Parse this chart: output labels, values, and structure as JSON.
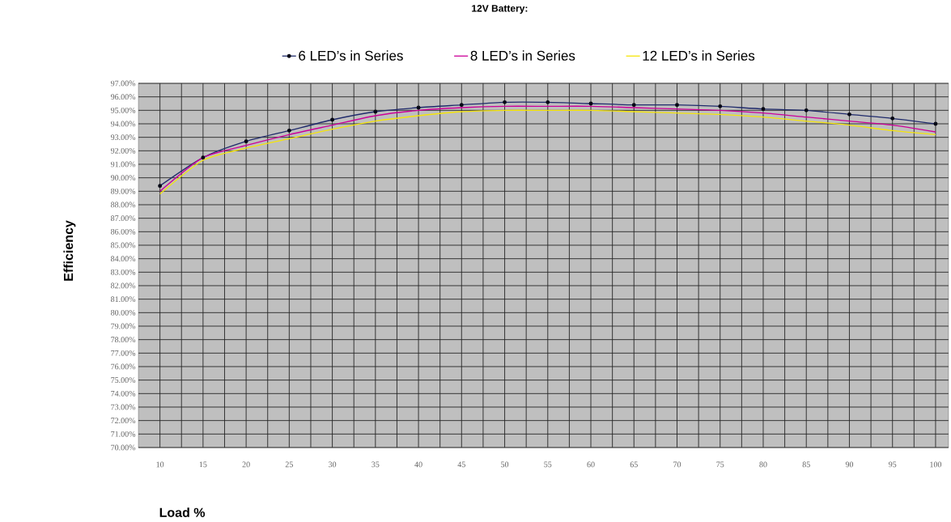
{
  "chart_data": {
    "type": "line",
    "title": "12V Battery:",
    "xlabel": "Load %",
    "ylabel": "Efficiency",
    "x": [
      10,
      15,
      20,
      25,
      30,
      35,
      40,
      45,
      50,
      55,
      60,
      65,
      70,
      75,
      80,
      85,
      90,
      95,
      100
    ],
    "xlim": [
      7.5,
      101.5
    ],
    "xticks": [
      10,
      15,
      20,
      25,
      30,
      35,
      40,
      45,
      50,
      55,
      60,
      65,
      70,
      75,
      80,
      85,
      90,
      95,
      100
    ],
    "ylim": [
      70,
      97
    ],
    "yticks": [
      {
        "value": 70,
        "label": "70.00%"
      },
      {
        "value": 71,
        "label": "71.00%"
      },
      {
        "value": 72,
        "label": "72.00%"
      },
      {
        "value": 73,
        "label": "73.00%"
      },
      {
        "value": 74,
        "label": "74.00%"
      },
      {
        "value": 75,
        "label": "75.00%"
      },
      {
        "value": 76,
        "label": "76.00%"
      },
      {
        "value": 77,
        "label": "77.00%"
      },
      {
        "value": 78,
        "label": "78.00%"
      },
      {
        "value": 79,
        "label": "79.00%"
      },
      {
        "value": 80,
        "label": "80.00%"
      },
      {
        "value": 81,
        "label": "81.00%"
      },
      {
        "value": 82,
        "label": "82.00%"
      },
      {
        "value": 83,
        "label": "83.00%"
      },
      {
        "value": 84,
        "label": "84.00%"
      },
      {
        "value": 85,
        "label": "85.00%"
      },
      {
        "value": 86,
        "label": "86.00%"
      },
      {
        "value": 87,
        "label": "87.00%"
      },
      {
        "value": 88,
        "label": "88.00%"
      },
      {
        "value": 89,
        "label": "89.00%"
      },
      {
        "value": 90,
        "label": "90.00%"
      },
      {
        "value": 91,
        "label": "91.00%"
      },
      {
        "value": 92,
        "label": "92.00%"
      },
      {
        "value": 93,
        "label": "93.00%"
      },
      {
        "value": 94,
        "label": "94.00%"
      },
      {
        "value": 95,
        "label": "95.00%"
      },
      {
        "value": 96,
        "label": "96.00%"
      },
      {
        "value": 97,
        "label": "97.00%"
      }
    ],
    "grid": true,
    "legend": "top",
    "line_style": "solid",
    "series": [
      {
        "name": "6 LED’s in Series",
        "color": "#1f2a6b",
        "marker": "circle",
        "values": [
          89.4,
          91.5,
          92.7,
          93.5,
          94.3,
          94.9,
          95.2,
          95.4,
          95.6,
          95.6,
          95.5,
          95.4,
          95.4,
          95.3,
          95.1,
          95.0,
          94.7,
          94.4,
          94.0
        ]
      },
      {
        "name": "8 LED’s in Series",
        "color": "#cc0099",
        "marker": "none",
        "values": [
          89.0,
          91.5,
          92.4,
          93.2,
          93.9,
          94.6,
          95.0,
          95.2,
          95.3,
          95.3,
          95.3,
          95.2,
          95.1,
          95.0,
          94.8,
          94.5,
          94.2,
          93.9,
          93.4
        ]
      },
      {
        "name": "12 LED’s in Series",
        "color": "#f5e50a",
        "marker": "none",
        "values": [
          88.8,
          91.3,
          92.2,
          92.9,
          93.6,
          94.2,
          94.6,
          94.9,
          95.0,
          95.0,
          95.0,
          94.9,
          94.8,
          94.7,
          94.5,
          94.2,
          93.9,
          93.5,
          93.2
        ]
      }
    ]
  }
}
